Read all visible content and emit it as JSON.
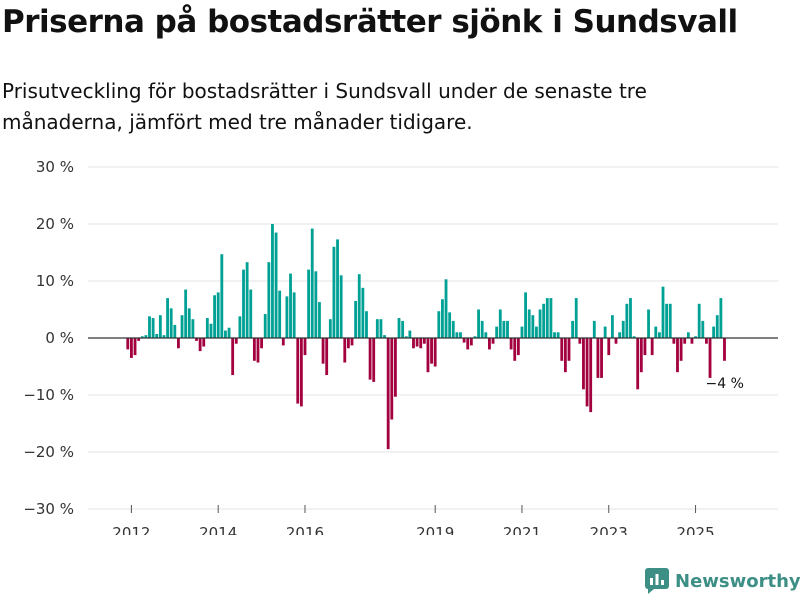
{
  "title": "Priserna på bostadsrätter sjönk i Sundsvall",
  "subtitle": "Prisutveckling för bostadsrätter i Sundsvall under de senaste tre månaderna, jämfört med tre månader tidigare.",
  "brand": "Newsworthy",
  "colors": {
    "positive": "#00a195",
    "negative": "#a2003e",
    "grid": "#e3e3e3",
    "axis": "#333333",
    "brand": "#3d8f86"
  },
  "chart_data": {
    "type": "bar",
    "y_ticks": [
      30,
      20,
      10,
      0,
      -10,
      -20,
      -30
    ],
    "y_tick_labels": [
      "30 %",
      "20 %",
      "10 %",
      "0 %",
      "−10 %",
      "−20 %",
      "−30 %"
    ],
    "ylim": [
      -30,
      30
    ],
    "x_ticks": [
      2012,
      2014,
      2016,
      2019,
      2021,
      2023,
      2025
    ],
    "x_range": [
      2011.0,
      2026.9
    ],
    "first_month": 2011.917,
    "month_step": 0.0833333,
    "last_label": "−4 %",
    "values": [
      -2.0,
      -3.5,
      -3.0,
      -0.5,
      0.3,
      0.5,
      3.8,
      3.5,
      0.7,
      4.0,
      0.5,
      7.0,
      5.2,
      2.3,
      -1.8,
      4.0,
      8.5,
      5.2,
      3.3,
      -0.5,
      -2.3,
      -1.5,
      3.5,
      2.5,
      7.5,
      8.0,
      14.7,
      1.3,
      1.8,
      -6.5,
      -1.0,
      3.8,
      12.0,
      13.3,
      8.5,
      -4.0,
      -4.3,
      -1.8,
      4.2,
      13.3,
      20.0,
      18.5,
      8.3,
      -1.3,
      7.3,
      11.3,
      8.0,
      -11.5,
      -12.0,
      -3.0,
      12.0,
      19.2,
      11.7,
      6.3,
      -4.5,
      -6.5,
      3.3,
      16.0,
      17.3,
      11.0,
      -4.3,
      -1.8,
      -1.3,
      6.5,
      11.2,
      8.8,
      4.7,
      -7.3,
      -7.7,
      3.3,
      3.3,
      0.5,
      -19.5,
      -14.3,
      -10.3,
      3.5,
      3.0,
      0.3,
      1.3,
      -1.8,
      -1.5,
      -1.8,
      -1.0,
      -6.0,
      -4.5,
      -5.0,
      4.7,
      6.8,
      10.3,
      4.5,
      3.0,
      1.0,
      1.0,
      -0.8,
      -2.0,
      -1.3,
      0.3,
      5.0,
      3.0,
      1.0,
      -2.0,
      -1.0,
      2.0,
      5.0,
      3.0,
      3.0,
      -2.0,
      -4.0,
      -3.0,
      2.0,
      8.0,
      5.0,
      4.0,
      2.0,
      5.0,
      6.0,
      7.0,
      7.0,
      1.0,
      1.0,
      -4.0,
      -6.0,
      -4.0,
      3.0,
      7.0,
      -1.0,
      -9.0,
      -12.0,
      -13.0,
      3.0,
      -7.0,
      -7.0,
      2.0,
      -3.0,
      4.0,
      -1.0,
      1.0,
      3.0,
      6.0,
      7.0,
      0.3,
      -9.0,
      -6.0,
      -3.0,
      5.0,
      -3.0,
      2.0,
      1.0,
      9.0,
      6.0,
      6.0,
      -1.0,
      -6.0,
      -4.0,
      -1.0,
      1.0,
      -1.0,
      0.3,
      6.0,
      3.0,
      -1.0,
      -7.0,
      2.0,
      4.0,
      7.0,
      -4.0
    ]
  }
}
